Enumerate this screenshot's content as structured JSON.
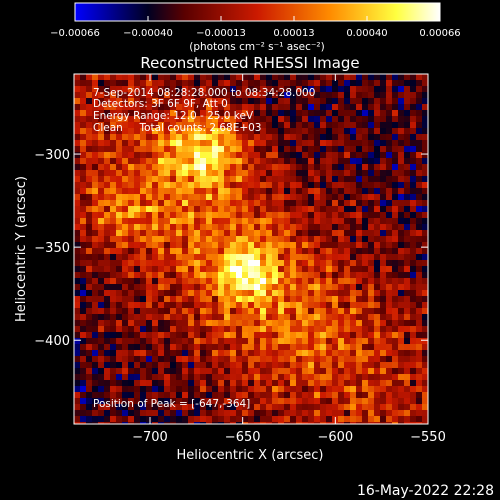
{
  "chart_data": {
    "type": "heatmap",
    "title": "Reconstructed RHESSI Image",
    "xlabel": "Heliocentric X (arcsec)",
    "ylabel": "Heliocentric Y (arcsec)",
    "xlim": [
      -741,
      -550
    ],
    "ylim": [
      -445,
      -257
    ],
    "x_ticks": [
      -700,
      -650,
      -600,
      -550
    ],
    "x_tick_labels": [
      "−700",
      "−650",
      "−600",
      "−550"
    ],
    "y_ticks": [
      -300,
      -350,
      -400
    ],
    "y_tick_labels": [
      "−300",
      "−350",
      "−400"
    ],
    "colorbar": {
      "range": [
        -0.00066,
        0.00066
      ],
      "tick_labels": [
        "−0.00066",
        "−0.00040",
        "−0.00013",
        "0.00013",
        "0.00040",
        "0.00066"
      ],
      "unit_label": "(photons cm⁻² s⁻¹ asec⁻²)",
      "colormap": [
        "#0000ff",
        "#000000",
        "#cc0000",
        "#ff8c00",
        "#ffff40",
        "#ffffff"
      ]
    },
    "annotations": [
      "7-Sep-2014 08:28:28.000 to 08:34:28.000",
      "Detectors: 3F 6F 9F, Att 0",
      "Energy Range: 12.0 - 25.0 keV",
      "Clean     Total counts: 2.68E+03"
    ],
    "peak_label": "Position of Peak = [-647,-364]",
    "peak": [
      -647,
      -364
    ]
  },
  "footer": {
    "timestamp": "16-May-2022 22:28"
  }
}
